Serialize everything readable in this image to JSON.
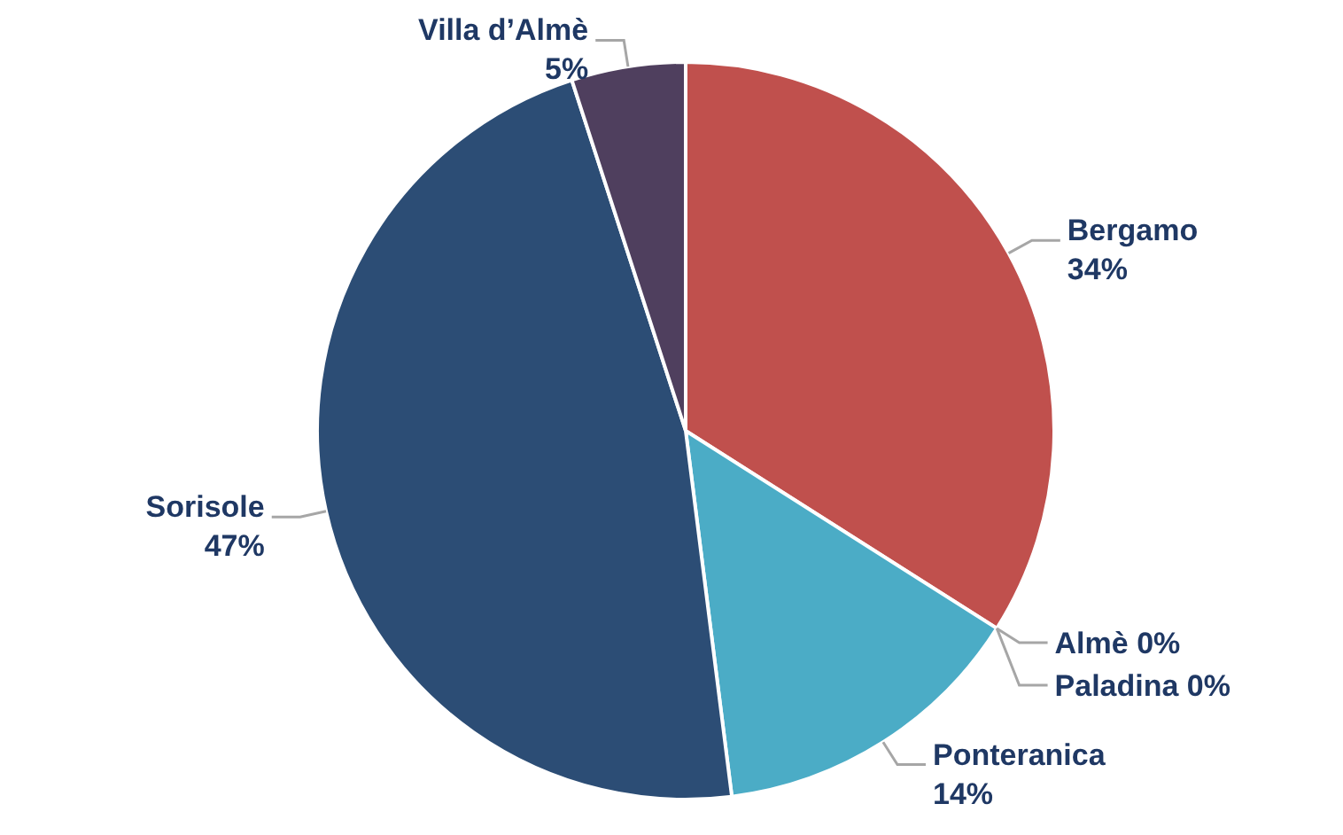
{
  "chart_data": {
    "type": "pie",
    "categories": [
      "Bergamo",
      "Almè",
      "Paladina",
      "Ponteranica",
      "Sorisole",
      "Villa d’Almè"
    ],
    "values": [
      34,
      0,
      0,
      14,
      47,
      5
    ],
    "value_labels": [
      "34%",
      "0%",
      "0%",
      "14%",
      "47%",
      "5%"
    ],
    "colors": [
      "#c0504d",
      "#9bbb59",
      "#8064a2",
      "#4bacc6",
      "#2c4d75",
      "#4f3f5e"
    ]
  }
}
